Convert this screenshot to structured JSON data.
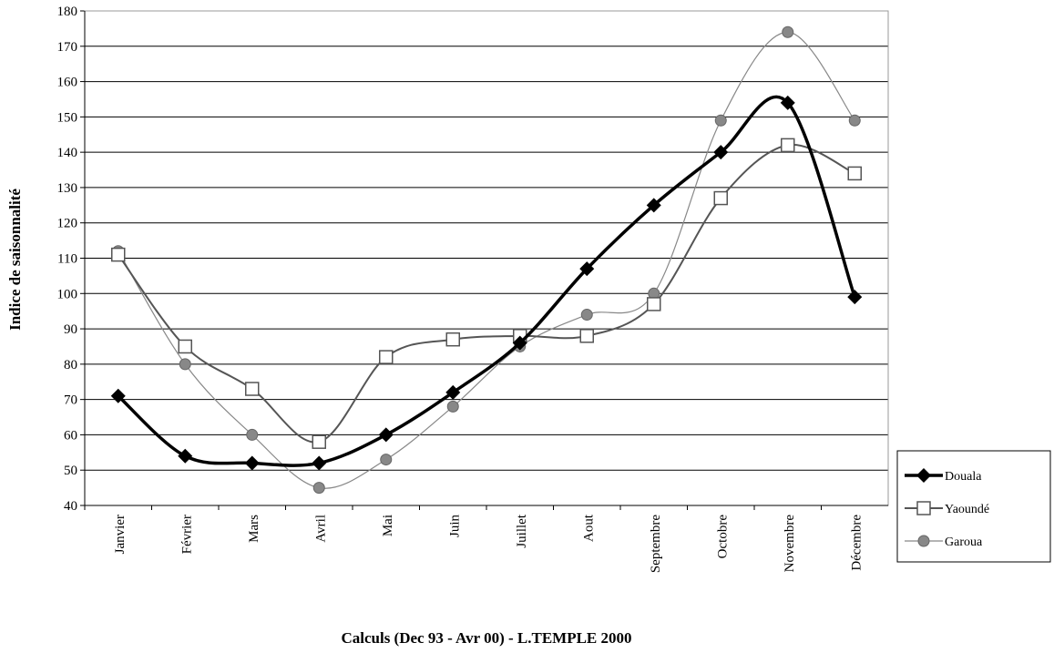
{
  "chart_data": {
    "type": "line",
    "y_label": "Indice de saisonnalité",
    "x_label": "Calculs (Dec 93 - Avr 00) - L.TEMPLE 2000",
    "categories": [
      "Janvier",
      "Février",
      "Mars",
      "Avril",
      "Mai",
      "Juin",
      "Juillet",
      "Aout",
      "Septembre",
      "Octobre",
      "Novembre",
      "Décembre"
    ],
    "series": [
      {
        "name": "Douala",
        "color": "#000000",
        "marker": "diamond",
        "values": [
          71,
          54,
          52,
          52,
          60,
          72,
          86,
          107,
          125,
          140,
          154,
          99
        ]
      },
      {
        "name": "Yaoundé",
        "color": "#555555",
        "marker": "square",
        "values": [
          111,
          85,
          73,
          58,
          82,
          87,
          88,
          88,
          97,
          127,
          142,
          134
        ]
      },
      {
        "name": "Garoua",
        "color": "#888888",
        "marker": "circle",
        "values": [
          112,
          80,
          60,
          45,
          53,
          68,
          85,
          94,
          100,
          149,
          174,
          149
        ]
      }
    ],
    "ylim": [
      40,
      180
    ],
    "yticks": [
      40,
      50,
      60,
      70,
      80,
      90,
      100,
      110,
      120,
      130,
      140,
      150,
      160,
      170,
      180
    ],
    "grid": true,
    "legend": "right"
  }
}
